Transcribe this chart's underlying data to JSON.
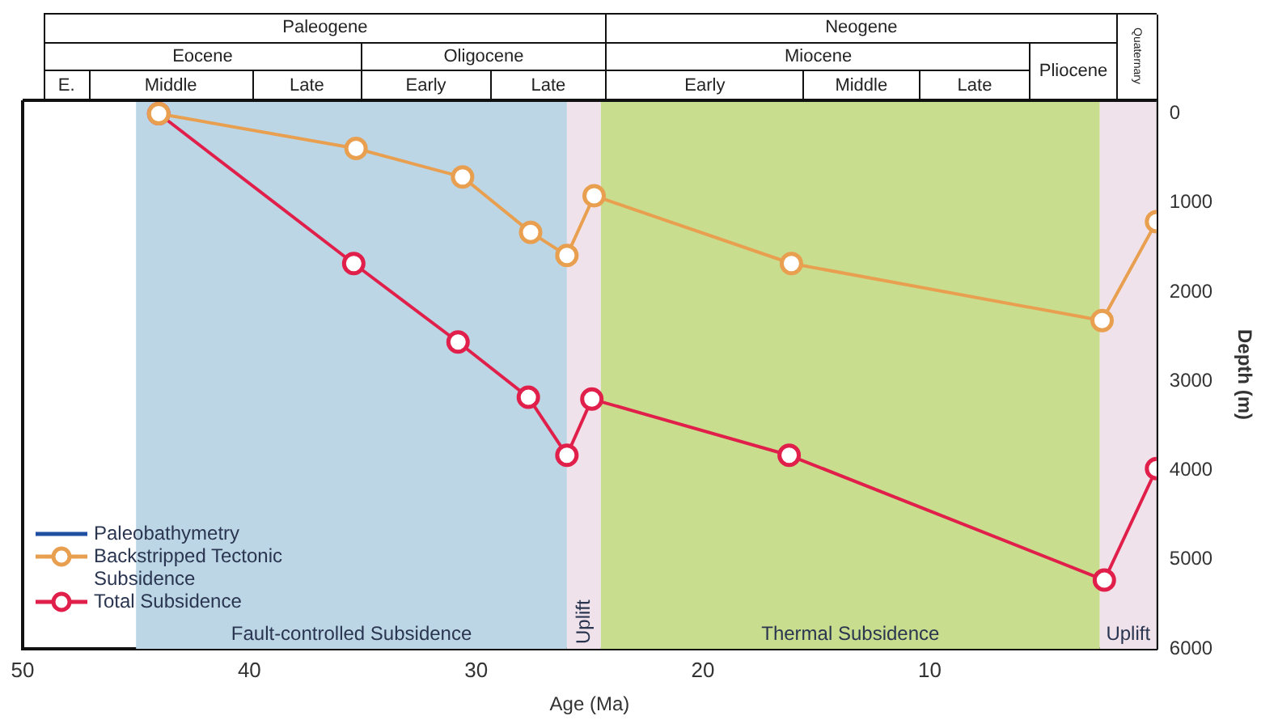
{
  "chart_data": {
    "type": "line",
    "xlabel": "Age (Ma)",
    "ylabel": "Depth (m)",
    "xlim": [
      50,
      0
    ],
    "xticks": [
      50,
      40,
      30,
      20,
      10
    ],
    "ylim": [
      6000,
      -150
    ],
    "yticks": [
      0,
      1000,
      2000,
      3000,
      4000,
      5000,
      6000
    ],
    "annotations": [
      "Paleogene",
      "Neogene",
      "Quaternary",
      "Eocene",
      "Oligocene",
      "Miocene",
      "Pliocene",
      "E.",
      "Middle",
      "Late",
      "Early",
      "Late",
      "Early",
      "Middle",
      "Late"
    ],
    "series": [
      {
        "name": "Paleobathymetry",
        "color": "#1f4fa0",
        "marker": "none"
      },
      {
        "name": "Backstripped Tectonic Subsidence",
        "color": "#e8a050",
        "x": [
          44,
          35.3,
          30.6,
          27.6,
          26.0,
          24.8,
          16.1,
          2.4,
          0
        ],
        "values": [
          0,
          390,
          710,
          1330,
          1590,
          920,
          1680,
          2320,
          1210
        ]
      },
      {
        "name": "Total Subsidence",
        "color": "#e0204a",
        "x": [
          44,
          35.4,
          30.8,
          27.7,
          26.0,
          24.9,
          16.2,
          2.3,
          0
        ],
        "values": [
          0,
          1680,
          2560,
          3180,
          3830,
          3200,
          3830,
          5230,
          3980
        ]
      }
    ],
    "bands": [
      {
        "axis": "x",
        "from": 45,
        "to": 26.0,
        "label": "Fault-controlled Subsidence",
        "color": "#bcd6e6"
      },
      {
        "axis": "x",
        "from": 26.0,
        "to": 24.5,
        "label": "Uplift",
        "color": "#f0e2ea"
      },
      {
        "axis": "x",
        "from": 24.5,
        "to": 2.5,
        "label": "Thermal Subsidence",
        "color": "#c9dd8e"
      },
      {
        "axis": "x",
        "from": 2.5,
        "to": 0,
        "label": "Uplift",
        "color": "#f0e2ea"
      }
    ],
    "marker": "circle",
    "legend": "bottom left",
    "grid": false
  }
}
